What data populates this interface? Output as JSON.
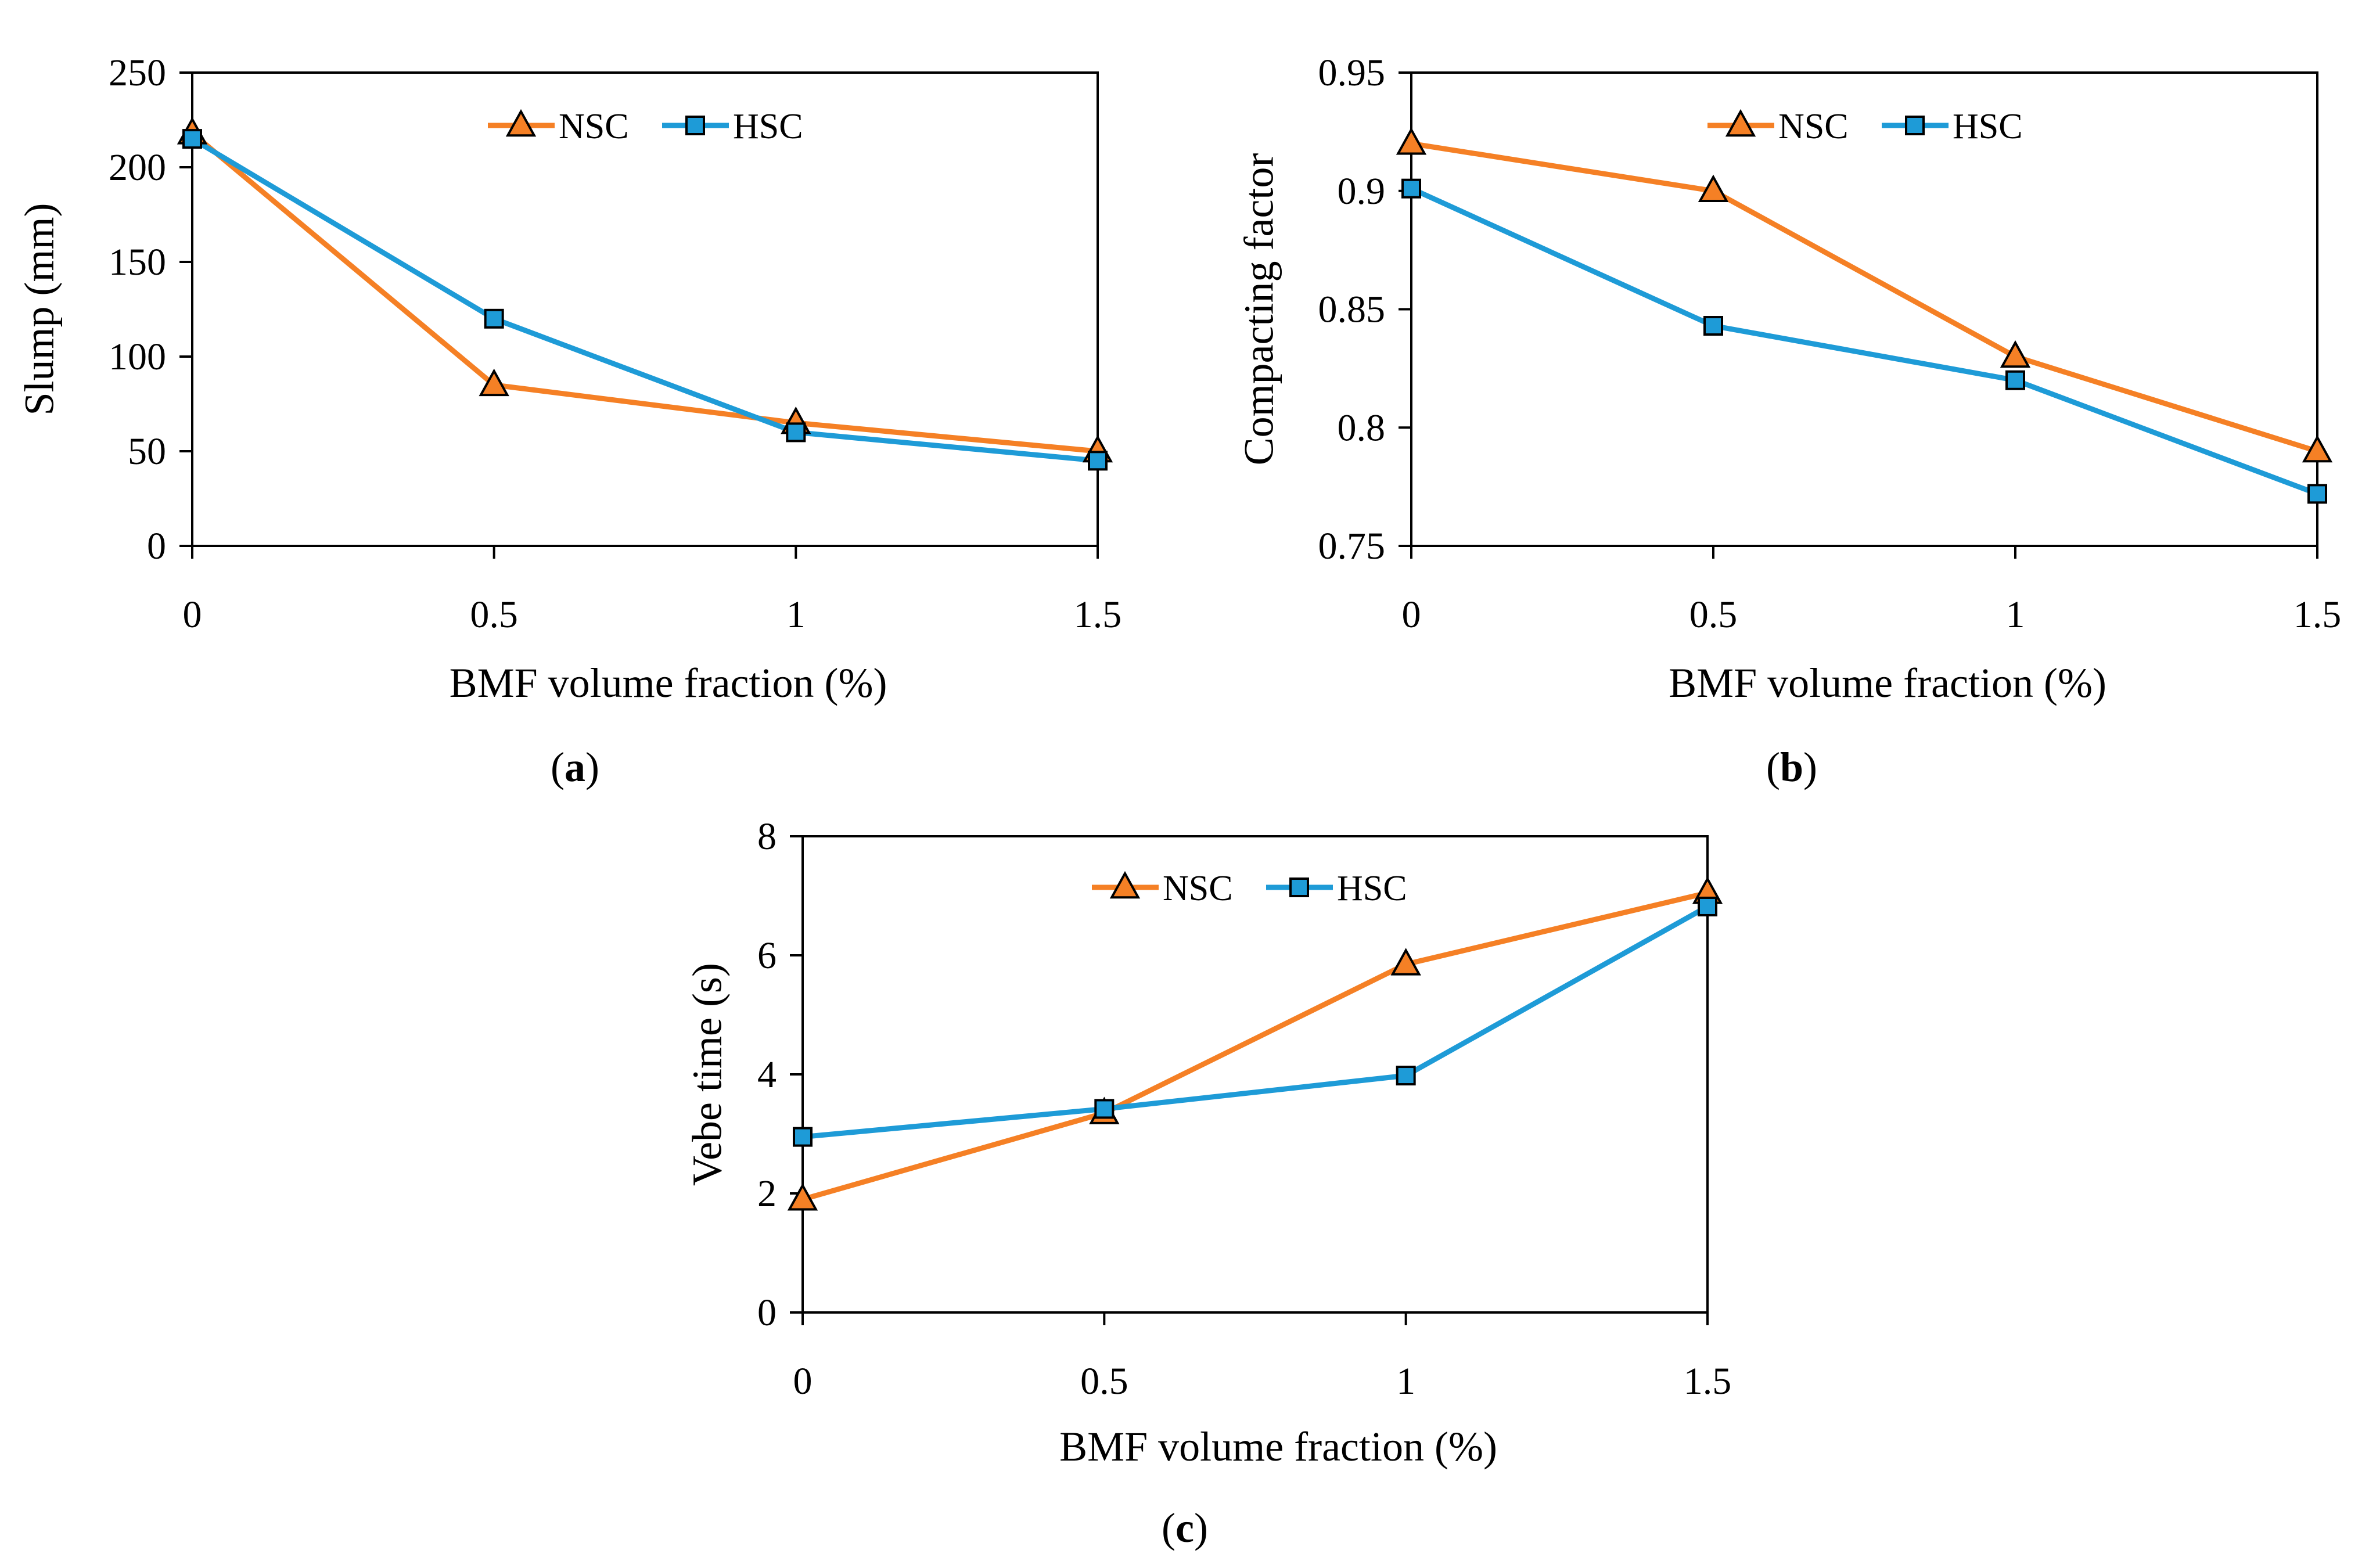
{
  "chart_data": [
    {
      "type": "line",
      "panel": "a",
      "caption": "a",
      "x": [
        0,
        0.5,
        1,
        1.5
      ],
      "xticks": [
        "0",
        "0.5",
        "1",
        "1.5"
      ],
      "xlim": [
        0,
        1.5
      ],
      "xlabel": "BMF volume fraction (%)",
      "ylabel": "Slump (mm)",
      "ylim": [
        0,
        250
      ],
      "yticks": [
        0,
        50,
        100,
        150,
        200,
        250
      ],
      "yticklabels": [
        "0",
        "50",
        "100",
        "150",
        "200",
        "250"
      ],
      "series": [
        {
          "name": "NSC",
          "marker": "triangle",
          "color": "#F58025",
          "values": [
            218,
            85,
            65,
            50
          ]
        },
        {
          "name": "HSC",
          "marker": "square",
          "color": "#1E9BD7",
          "values": [
            215,
            120,
            60,
            45
          ]
        }
      ],
      "legend": "top-center"
    },
    {
      "type": "line",
      "panel": "b",
      "caption": "b",
      "x": [
        0,
        0.5,
        1,
        1.5
      ],
      "xticks": [
        "0",
        "0.5",
        "1",
        "1.5"
      ],
      "xlim": [
        0,
        1.5
      ],
      "xlabel": "BMF volume fraction (%)",
      "ylabel": "Compacting factor",
      "ylim": [
        0.75,
        0.95
      ],
      "yticks": [
        0.75,
        0.8,
        0.85,
        0.9,
        0.95
      ],
      "yticklabels": [
        "0.75",
        "0.8",
        "0.85",
        "0.9",
        "0.95"
      ],
      "series": [
        {
          "name": "NSC",
          "marker": "triangle",
          "color": "#F58025",
          "values": [
            0.92,
            0.9,
            0.83,
            0.79
          ]
        },
        {
          "name": "HSC",
          "marker": "square",
          "color": "#1E9BD7",
          "values": [
            0.901,
            0.843,
            0.82,
            0.772
          ]
        }
      ],
      "legend": "top-center"
    },
    {
      "type": "line",
      "panel": "c",
      "caption": "c",
      "x": [
        0,
        0.5,
        1,
        1.5
      ],
      "xticks": [
        "0",
        "0.5",
        "1",
        "1.5"
      ],
      "xlim": [
        0,
        1.5
      ],
      "xlabel": "BMF volume fraction (%)",
      "ylabel": "Vebe time (s)",
      "ylim": [
        0,
        8
      ],
      "yticks": [
        0,
        2,
        4,
        6,
        8
      ],
      "yticklabels": [
        "0",
        "2",
        "4",
        "6",
        "8"
      ],
      "series": [
        {
          "name": "NSC",
          "marker": "triangle",
          "color": "#F58025",
          "values": [
            1.9,
            3.35,
            5.85,
            7.05
          ]
        },
        {
          "name": "HSC",
          "marker": "square",
          "color": "#1E9BD7",
          "values": [
            2.95,
            3.42,
            3.98,
            6.82
          ]
        }
      ],
      "legend": "top-center"
    }
  ]
}
